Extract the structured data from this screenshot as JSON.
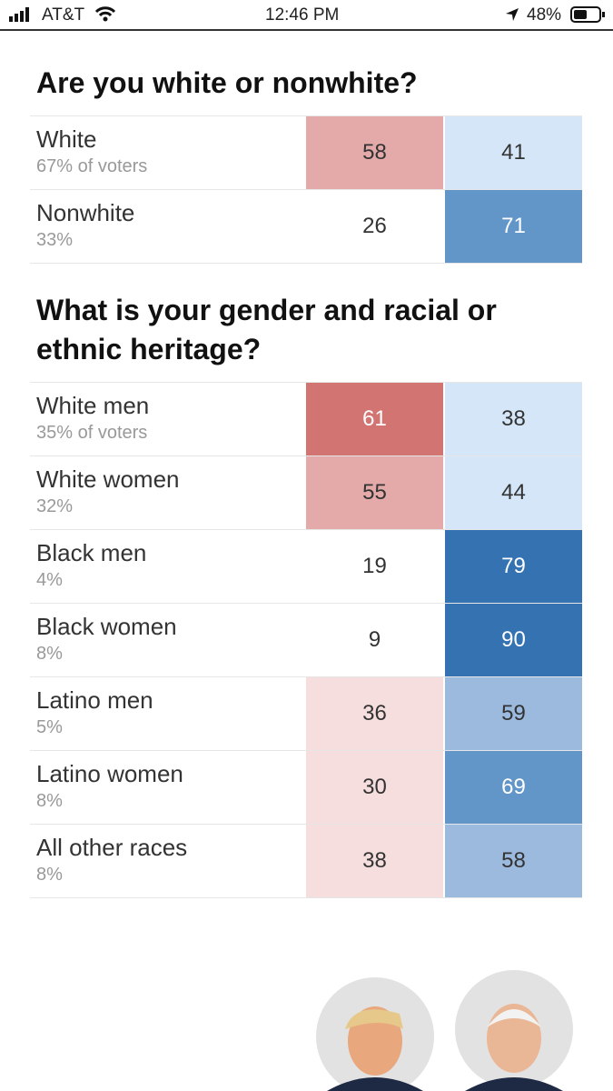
{
  "status_bar": {
    "carrier": "AT&T",
    "time": "12:46 PM",
    "battery": "48%"
  },
  "sections": [
    {
      "title": "Are you white or nonwhite?",
      "rows": [
        {
          "label": "White",
          "share": "67% of voters",
          "values": [
            {
              "text": "58",
              "color": "#e4a9a9"
            },
            {
              "text": "41",
              "color": "#d4e6f8"
            }
          ]
        },
        {
          "label": "Nonwhite",
          "share": "33%",
          "values": [
            {
              "text": "26",
              "color": "#ffffff"
            },
            {
              "text": "71",
              "color": "#6295c8"
            }
          ]
        }
      ]
    },
    {
      "title": "What is your gender and racial or ethnic heritage?",
      "rows": [
        {
          "label": "White men",
          "share": "35% of voters",
          "values": [
            {
              "text": "61",
              "color": "#d27472"
            },
            {
              "text": "38",
              "color": "#d4e6f8"
            }
          ]
        },
        {
          "label": "White women",
          "share": "32%",
          "values": [
            {
              "text": "55",
              "color": "#e4a9a9"
            },
            {
              "text": "44",
              "color": "#d4e6f8"
            }
          ]
        },
        {
          "label": "Black men",
          "share": "4%",
          "values": [
            {
              "text": "19",
              "color": "#ffffff"
            },
            {
              "text": "79",
              "color": "#3472b2"
            }
          ]
        },
        {
          "label": "Black women",
          "share": "8%",
          "values": [
            {
              "text": "9",
              "color": "#ffffff"
            },
            {
              "text": "90",
              "color": "#3472b2"
            }
          ]
        },
        {
          "label": "Latino men",
          "share": "5%",
          "values": [
            {
              "text": "36",
              "color": "#f6dede"
            },
            {
              "text": "59",
              "color": "#9bbade"
            }
          ]
        },
        {
          "label": "Latino women",
          "share": "8%",
          "values": [
            {
              "text": "30",
              "color": "#f6dede"
            },
            {
              "text": "69",
              "color": "#6295c8"
            }
          ]
        },
        {
          "label": "All other races",
          "share": "8%",
          "values": [
            {
              "text": "38",
              "color": "#f6dede"
            },
            {
              "text": "58",
              "color": "#9bbade"
            }
          ]
        }
      ]
    }
  ]
}
